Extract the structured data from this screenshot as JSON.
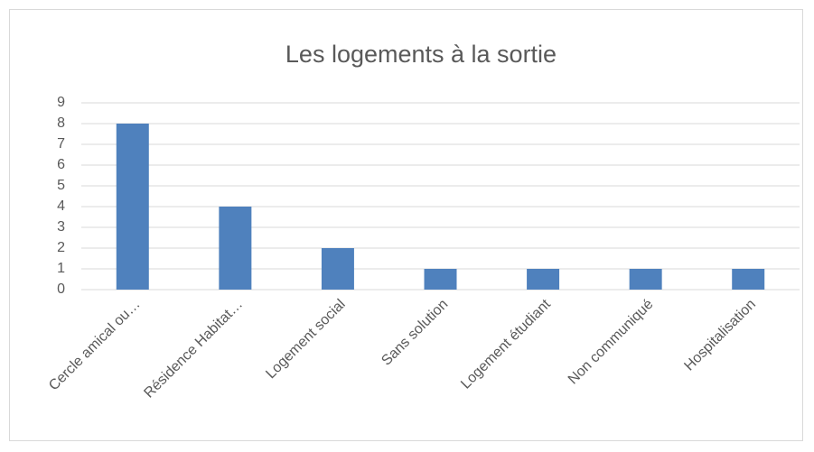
{
  "chart_data": {
    "type": "bar",
    "title": "Les logements à la sortie",
    "categories": [
      "Cercle amical ou…",
      "Résidence Habitat…",
      "Logement social",
      "Sans solution",
      "Logement étudiant",
      "Non communiqué",
      "Hospitalisation"
    ],
    "values": [
      8,
      4,
      2,
      1,
      1,
      1,
      1
    ],
    "color": "#4f81bd",
    "ylim": [
      0,
      9
    ],
    "yticks": [
      0,
      1,
      2,
      3,
      4,
      5,
      6,
      7,
      8,
      9
    ],
    "grid": true
  }
}
